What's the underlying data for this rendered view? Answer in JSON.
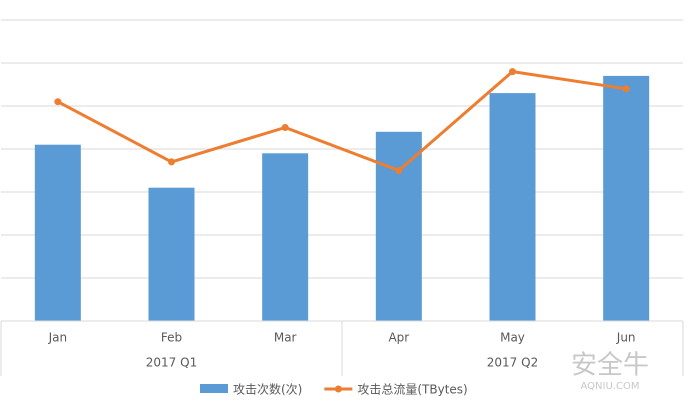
{
  "chart_data": {
    "type": "bar-line",
    "categories": [
      "Jan",
      "Feb",
      "Mar",
      "Apr",
      "May",
      "Jun"
    ],
    "groups": [
      {
        "label": "2017 Q1",
        "size": 3
      },
      {
        "label": "2017 Q2",
        "size": 3
      }
    ],
    "series": [
      {
        "name": "攻击次数(次)",
        "type": "bar",
        "color": "#5b9bd5",
        "values": [
          4.1,
          3.1,
          3.9,
          4.4,
          5.3,
          5.7
        ]
      },
      {
        "name": "攻击总流量(TBytes)",
        "type": "line",
        "color": "#ed7d31",
        "values": [
          5.1,
          3.7,
          4.5,
          3.5,
          5.8,
          5.4
        ]
      }
    ],
    "ylim": [
      0,
      7
    ],
    "yticks": [
      0,
      1,
      2,
      3,
      4,
      5,
      6,
      7
    ],
    "grid": true,
    "watermark": {
      "text": "安全牛",
      "subtext": "AQNIU.COM"
    }
  }
}
